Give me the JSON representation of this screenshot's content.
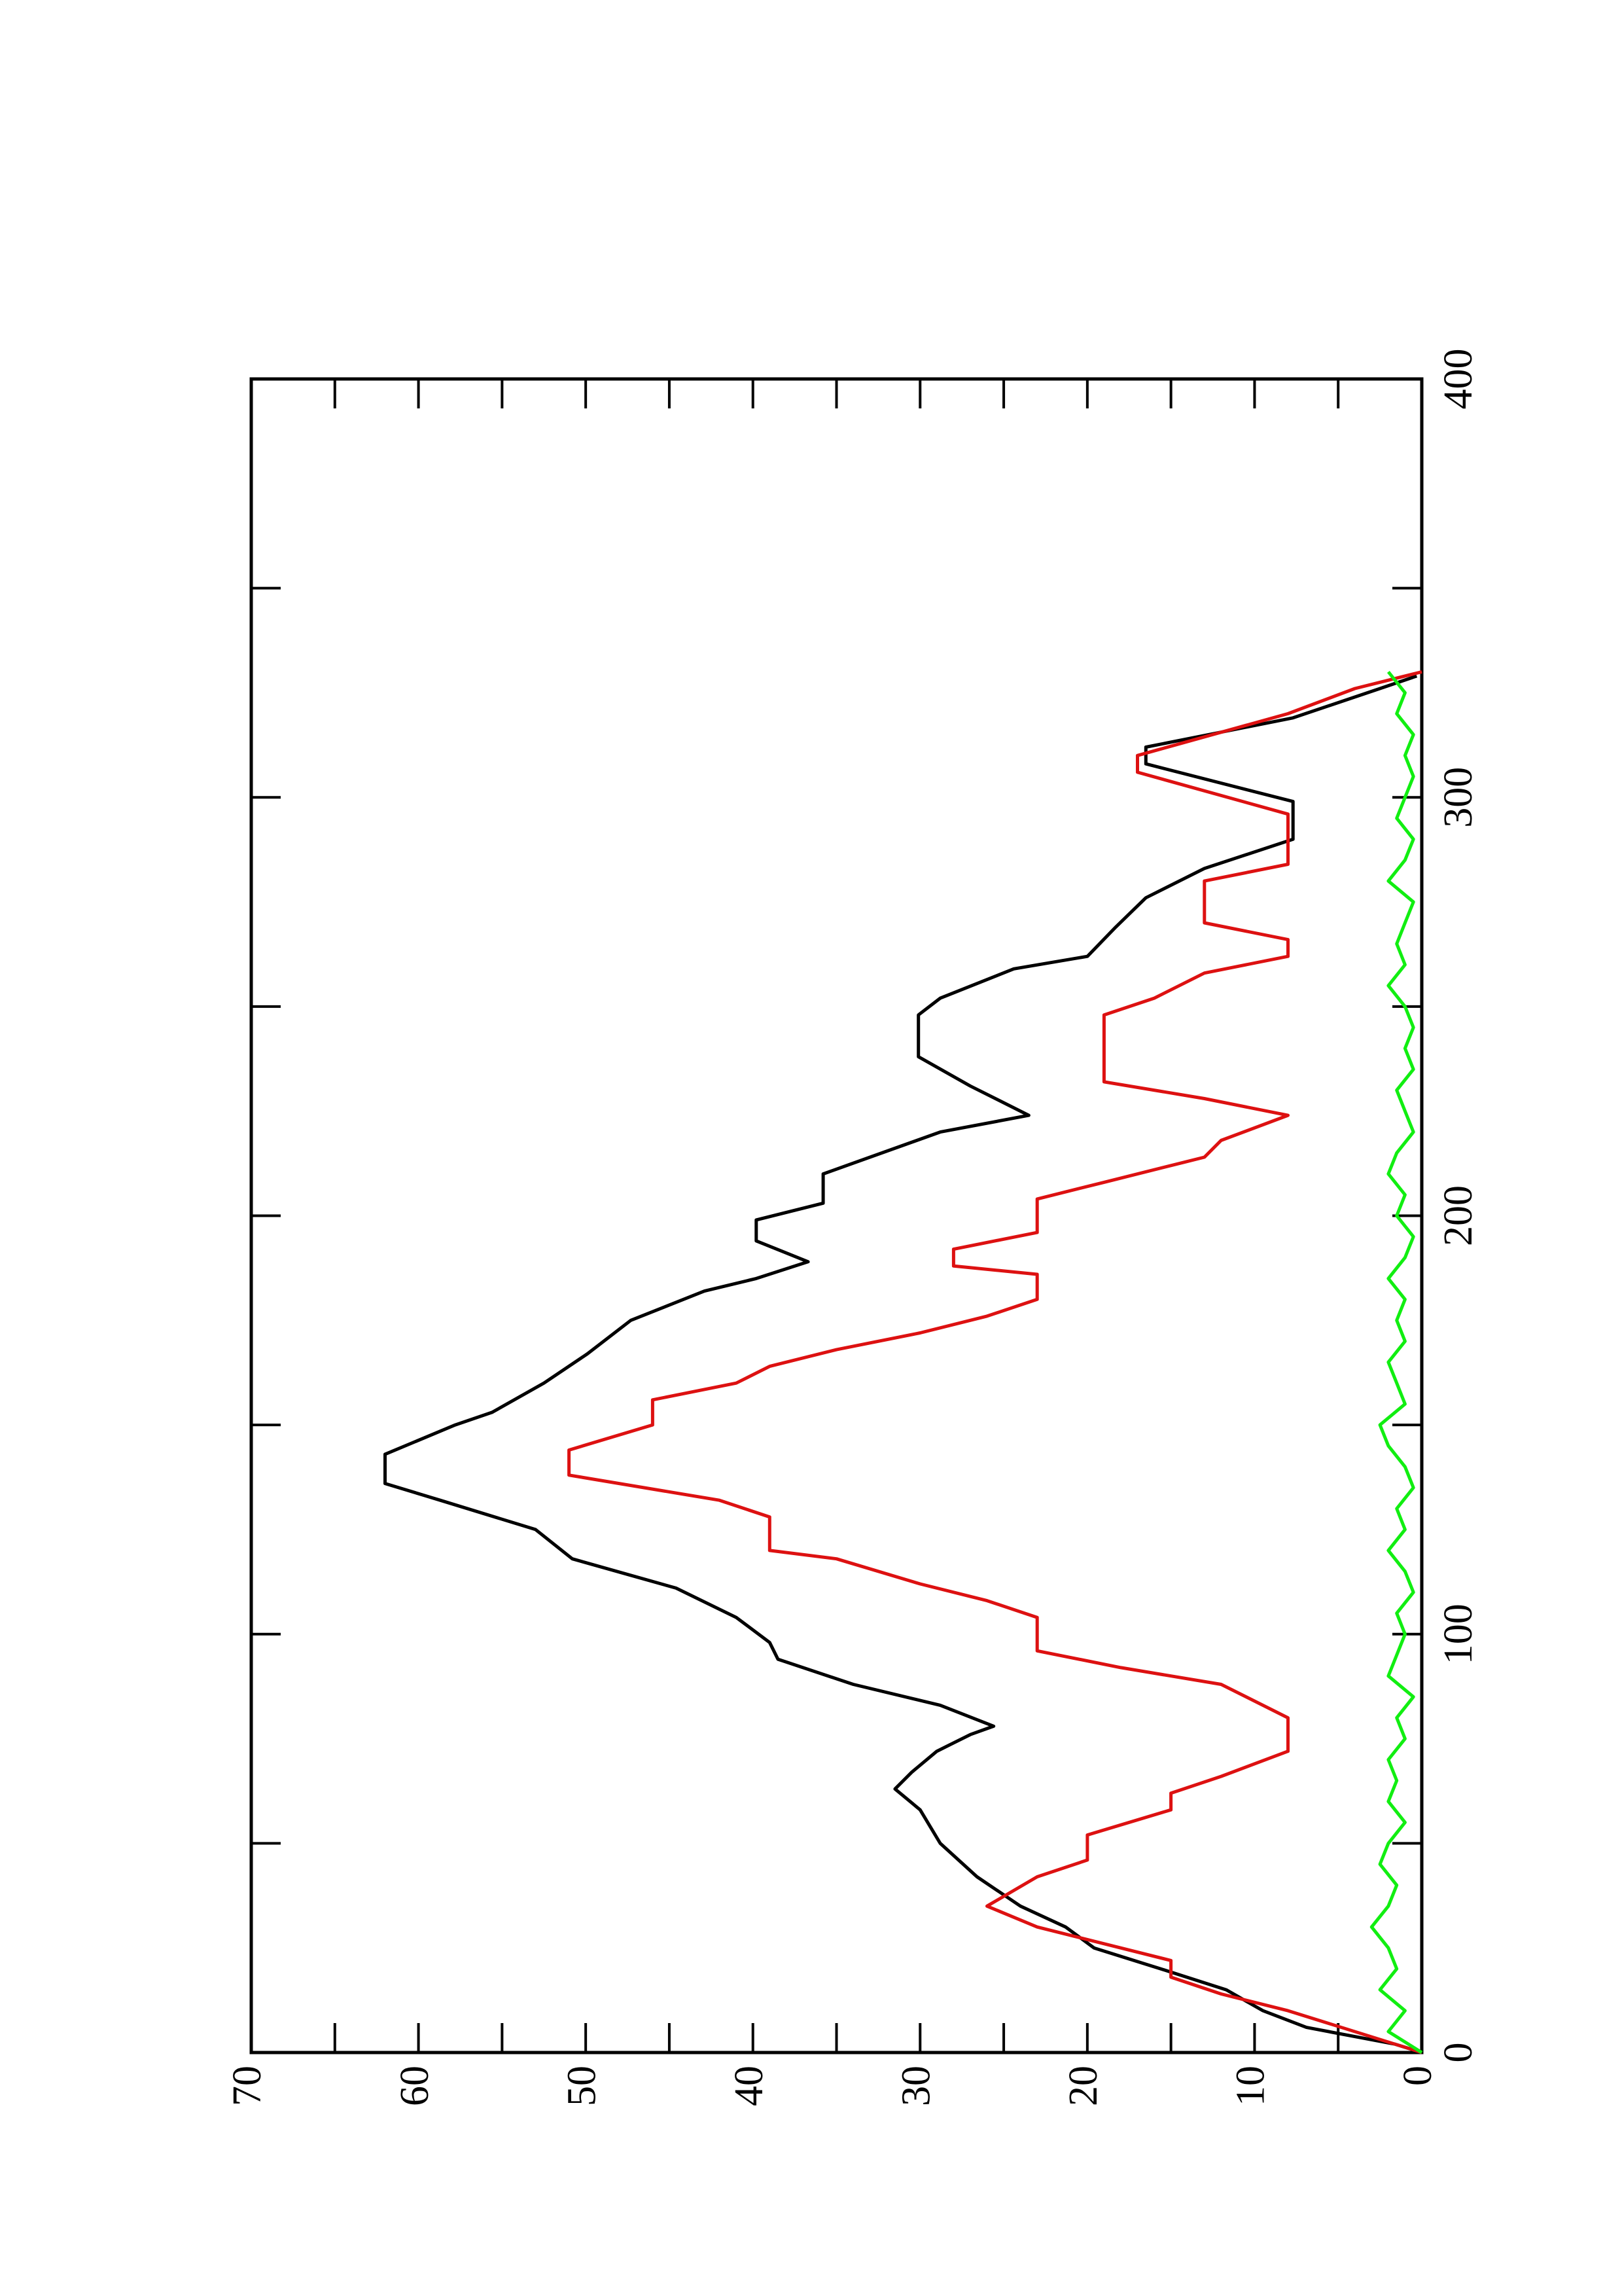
{
  "chart_data": {
    "type": "line",
    "xlim": [
      0,
      400
    ],
    "xticks": [
      0,
      100,
      200,
      300,
      400
    ],
    "xminor_ticks": [
      50,
      150,
      250,
      350
    ],
    "ylim": [
      0,
      70
    ],
    "yticks": [
      0,
      10,
      20,
      30,
      40,
      50,
      60,
      70
    ],
    "yminor_ticks": [
      5,
      15,
      25,
      35,
      45,
      55,
      65
    ],
    "rotation": -90,
    "series": [
      {
        "color": "#000000",
        "x": [
          0,
          2,
          6,
          10,
          15,
          20,
          25,
          30,
          35,
          42,
          50,
          58,
          63,
          67,
          72,
          76,
          78,
          83,
          88,
          94,
          98,
          104,
          111,
          118,
          125,
          132,
          136,
          143,
          150,
          153,
          160,
          167,
          175,
          182,
          185,
          189,
          194,
          199,
          203,
          210,
          220,
          224,
          231,
          238,
          248,
          252,
          259,
          262,
          269,
          276,
          283,
          290,
          299,
          308,
          312,
          319,
          326,
          329
        ],
        "values": [
          0,
          1.6,
          6.9,
          9.5,
          11.7,
          15.6,
          19.6,
          21.3,
          24,
          26.6,
          28.8,
          30,
          31.5,
          30.5,
          29,
          27,
          25.6,
          28.8,
          34,
          38.5,
          39,
          41,
          44.6,
          50.8,
          53,
          58.7,
          62,
          62,
          57.8,
          55.6,
          52.5,
          49.9,
          47.3,
          42.9,
          39.8,
          36.7,
          39.8,
          39.8,
          35.8,
          35.8,
          28.8,
          23.5,
          27,
          30.1,
          30.1,
          28.8,
          24.4,
          20,
          18.3,
          16.5,
          13,
          7.7,
          7.7,
          16.5,
          16.5,
          7.7,
          2.5,
          0.3
        ]
      },
      {
        "color": "#dd1111",
        "x": [
          0,
          10,
          14,
          18,
          22,
          30,
          35,
          42,
          46,
          52,
          58,
          62,
          66,
          72,
          80,
          88,
          92,
          96,
          104,
          108,
          112,
          118,
          120,
          128,
          132,
          138,
          144,
          150,
          156,
          160,
          164,
          168,
          172,
          176,
          180,
          186,
          188,
          192,
          196,
          204,
          208,
          214,
          218,
          224,
          228,
          232,
          248,
          252,
          258,
          262,
          266,
          270,
          280,
          284,
          296,
          306,
          310,
          320,
          326,
          330
        ],
        "values": [
          0,
          8,
          12,
          15,
          15,
          23,
          26,
          23,
          20,
          20,
          15,
          15,
          12,
          8,
          8,
          12,
          18,
          23,
          23,
          26,
          30,
          35,
          39,
          39,
          42,
          51,
          51,
          46,
          46,
          41,
          39,
          35,
          30,
          26,
          23,
          23,
          28,
          28,
          23,
          23,
          19,
          13,
          12,
          8,
          13,
          19,
          19,
          16,
          13,
          8,
          8,
          13,
          13,
          8,
          8,
          17,
          17,
          8,
          4,
          0
        ]
      },
      {
        "color": "#11ee11",
        "x": [
          0,
          5,
          10,
          15,
          20,
          25,
          30,
          35,
          40,
          45,
          50,
          55,
          60,
          65,
          70,
          75,
          80,
          85,
          90,
          95,
          100,
          105,
          110,
          115,
          120,
          125,
          130,
          135,
          140,
          145,
          150,
          155,
          160,
          165,
          170,
          175,
          180,
          185,
          190,
          195,
          200,
          205,
          210,
          215,
          220,
          225,
          230,
          235,
          240,
          245,
          250,
          255,
          260,
          265,
          270,
          275,
          280,
          285,
          290,
          295,
          300,
          305,
          310,
          315,
          320,
          325,
          330
        ],
        "values": [
          0,
          2,
          1,
          2.5,
          1.5,
          2,
          3,
          2,
          1.5,
          2.5,
          2,
          1,
          2,
          1.5,
          2,
          1,
          1.5,
          0.5,
          2,
          1.5,
          1,
          1.5,
          0.5,
          1,
          2,
          1,
          1.5,
          0.5,
          1,
          2,
          2.5,
          1,
          1.5,
          2,
          1,
          1.5,
          1,
          2,
          1,
          0.5,
          1.5,
          1,
          2,
          1.5,
          0.5,
          1,
          1.5,
          0.5,
          1,
          0.5,
          1,
          2,
          1,
          1.5,
          1,
          0.5,
          2,
          1,
          0.5,
          1.5,
          1,
          0.5,
          1,
          0.5,
          1.5,
          1,
          2
        ]
      }
    ]
  }
}
